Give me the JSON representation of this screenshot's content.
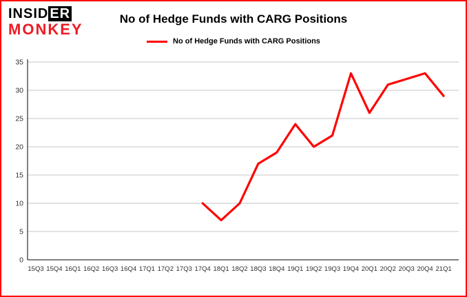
{
  "meta": {
    "border_color": "#ff0000",
    "background": "#ffffff"
  },
  "logo": {
    "line1_prefix": "INSID",
    "line1_boxed": "ER",
    "line2": "MONKEY",
    "color_line1": "#000000",
    "color_line2": "#ed1c24"
  },
  "header": {
    "title": "No of Hedge Funds with CARG Positions"
  },
  "legend": {
    "label": "No of Hedge Funds with CARG Positions",
    "line_color": "#ff0000"
  },
  "chart_data": {
    "type": "line",
    "title": "No of Hedge Funds with CARG Positions",
    "categories": [
      "15Q3",
      "15Q4",
      "16Q1",
      "16Q2",
      "16Q3",
      "16Q4",
      "17Q1",
      "17Q2",
      "17Q3",
      "17Q4",
      "18Q1",
      "18Q2",
      "18Q3",
      "18Q4",
      "19Q1",
      "19Q2",
      "19Q3",
      "19Q4",
      "20Q1",
      "20Q2",
      "20Q3",
      "20Q4",
      "21Q1"
    ],
    "series": [
      {
        "name": "No of Hedge Funds with CARG Positions",
        "color": "#ff0000",
        "values": [
          null,
          null,
          null,
          null,
          null,
          null,
          null,
          null,
          null,
          10,
          7,
          10,
          17,
          19,
          24,
          20,
          22,
          33,
          26,
          31,
          32,
          33,
          29
        ]
      }
    ],
    "xlabel": "",
    "ylabel": "",
    "ylim": [
      0,
      35
    ],
    "yticks": [
      0,
      5,
      10,
      15,
      20,
      25,
      30,
      35
    ],
    "grid": "horizontal",
    "gridline_color": "#c6c6c6",
    "axis_color": "#000000",
    "tick_label_color": "#303030",
    "legend_position": "top"
  }
}
